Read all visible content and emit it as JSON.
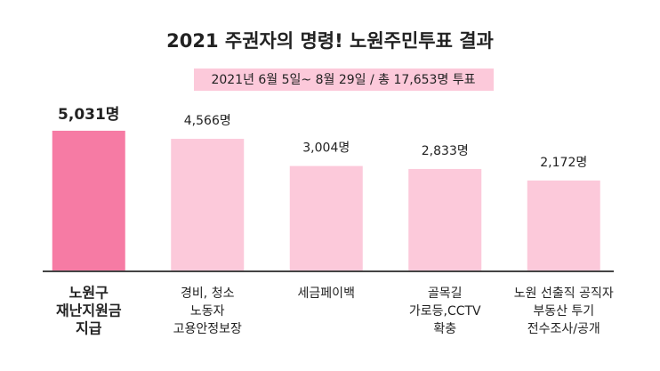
{
  "chart_data": {
    "type": "bar",
    "title": "2021 주권자의 명령! 노원주민투표 결과",
    "subtitle": "2021년 6월 5일~ 8월 29일 / 총 17,653명 투표",
    "categories": [
      [
        "노원구",
        "재난지원금",
        "지급"
      ],
      [
        "경비, 청소",
        "노동자",
        "고용안정보장"
      ],
      [
        "세금페이백"
      ],
      [
        "골목길",
        "가로등,CCTV",
        "확충"
      ],
      [
        "노원 선출직 공직자",
        "부동산 투기",
        "전수조사/공개"
      ]
    ],
    "values": [
      5031,
      4566,
      3004,
      2833,
      2172
    ],
    "value_labels": [
      "5,031명",
      "4,566명",
      "3,004명",
      "2,833명",
      "2,172명"
    ],
    "colors": [
      "#f67ba4",
      "#fcc9da",
      "#fcc9da",
      "#fcc9da",
      "#fcc9da"
    ],
    "ylim": [
      -3000,
      5100
    ]
  }
}
